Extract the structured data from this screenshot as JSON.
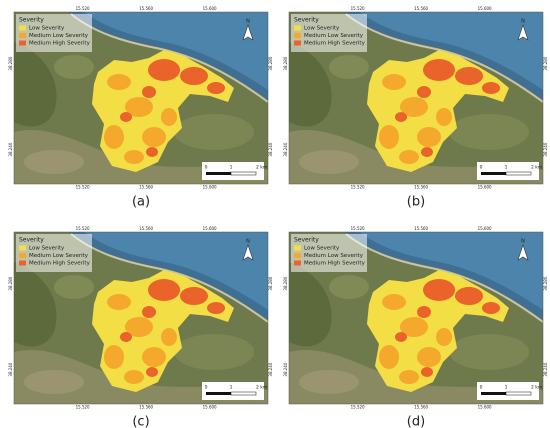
{
  "panels": [
    {
      "caption": "(a)"
    },
    {
      "caption": "(b)"
    },
    {
      "caption": "(c)"
    },
    {
      "caption": "(d)"
    }
  ],
  "legend": {
    "title": "Severity",
    "items": [
      {
        "label": "Low Severity",
        "color": "#f3df45"
      },
      {
        "label": "Medium Low Severity",
        "color": "#f4a92c"
      },
      {
        "label": "Medium High Severity",
        "color": "#e9632a"
      }
    ]
  },
  "longitude_ticks": [
    "15.520",
    "15.560",
    "15.600"
  ],
  "latitude_ticks": [
    "38.280",
    "38.240"
  ],
  "scale_bar": [
    "0",
    "1",
    "2 km"
  ],
  "north": "N"
}
